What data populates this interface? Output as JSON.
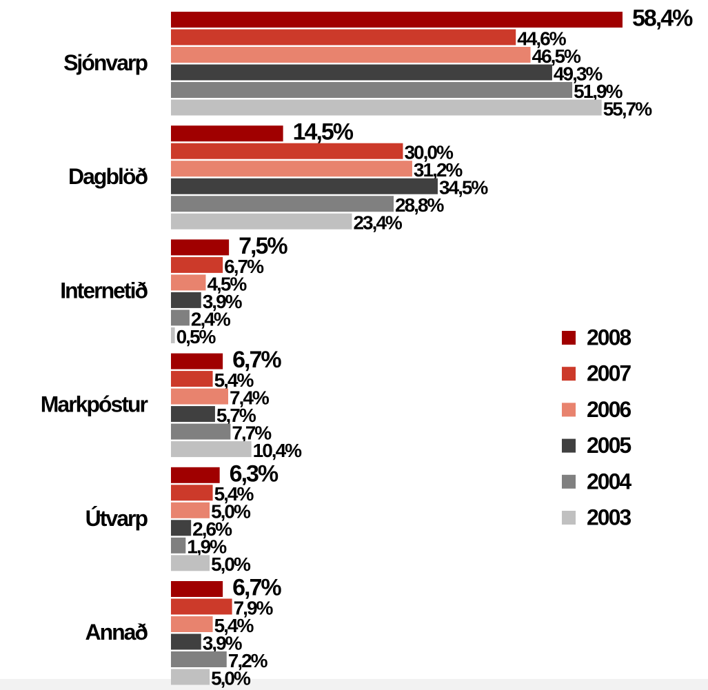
{
  "chart_data": {
    "type": "bar",
    "orientation": "horizontal",
    "categories": [
      "Sjónvarp",
      "Dagblöð",
      "Internetið",
      "Markpóstur",
      "Útvarp",
      "Annað"
    ],
    "series": [
      {
        "name": "2008",
        "color": "#a00000",
        "values": [
          58.4,
          14.5,
          7.5,
          6.7,
          6.3,
          6.7
        ],
        "value_labels": [
          "58,4%",
          "14,5%",
          "7,5%",
          "6,7%",
          "6,3%",
          "6,7%"
        ]
      },
      {
        "name": "2007",
        "color": "#cc3a2a",
        "values": [
          44.6,
          30.0,
          6.7,
          5.4,
          5.4,
          7.9
        ],
        "value_labels": [
          "44,6%",
          "30,0%",
          "6,7%",
          "5,4%",
          "5,4%",
          "7,9%"
        ]
      },
      {
        "name": "2006",
        "color": "#e8836e",
        "values": [
          46.5,
          31.2,
          4.5,
          7.4,
          5.0,
          5.4
        ],
        "value_labels": [
          "46,5%",
          "31,2%",
          "4,5%",
          "7,4%",
          "5,0%",
          "5,4%"
        ]
      },
      {
        "name": "2005",
        "color": "#404040",
        "values": [
          49.3,
          34.5,
          3.9,
          5.7,
          2.6,
          3.9
        ],
        "value_labels": [
          "49,3%",
          "34,5%",
          "3,9%",
          "5,7%",
          "2,6%",
          "3,9%"
        ]
      },
      {
        "name": "2004",
        "color": "#808080",
        "values": [
          51.9,
          28.8,
          2.4,
          7.7,
          1.9,
          7.2
        ],
        "value_labels": [
          "51,9%",
          "28,8%",
          "2,4%",
          "7,7%",
          "1,9%",
          "7,2%"
        ]
      },
      {
        "name": "2003",
        "color": "#c0c0c0",
        "values": [
          55.7,
          23.4,
          0.5,
          10.4,
          5.0,
          5.0
        ],
        "value_labels": [
          "55,7%",
          "23,4%",
          "0,5%",
          "10,4%",
          "5,0%",
          "5,0%"
        ]
      }
    ],
    "legend": "right"
  }
}
